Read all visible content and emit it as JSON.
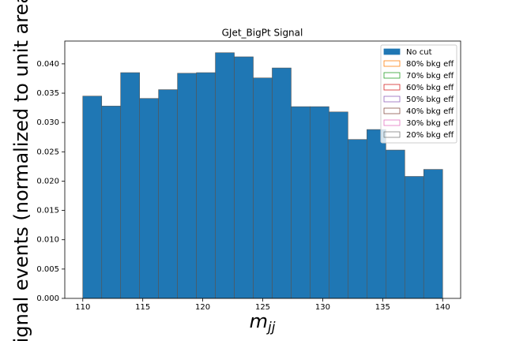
{
  "chart_data": {
    "type": "histogram",
    "title": "GJet_BigPt Signal",
    "xlabel": {
      "text": "m",
      "subscript": "jj"
    },
    "ylabel": "Signal events (normalized to unit area)",
    "bins": [
      110,
      111.578947,
      113.157895,
      114.736842,
      116.315789,
      117.894737,
      119.473684,
      121.052632,
      122.631579,
      124.210526,
      125.789474,
      127.368421,
      128.947368,
      130.526316,
      132.105263,
      133.684211,
      135.263158,
      136.842105,
      138.421053,
      140
    ],
    "series": [
      {
        "name": "No cut",
        "color": "#1f77b4",
        "edgecolor": "#555555",
        "values": [
          0.0345,
          0.0328,
          0.0385,
          0.0341,
          0.0356,
          0.0384,
          0.0385,
          0.0419,
          0.0412,
          0.0376,
          0.0393,
          0.0327,
          0.0327,
          0.0318,
          0.0271,
          0.0288,
          0.0253,
          0.0208,
          0.022
        ]
      },
      {
        "name": "80% bkg eff",
        "color": "#ff7f0e"
      },
      {
        "name": "70% bkg eff",
        "color": "#2ca02c"
      },
      {
        "name": "60% bkg eff",
        "color": "#d62728"
      },
      {
        "name": "50% bkg eff",
        "color": "#9467bd"
      },
      {
        "name": "40% bkg eff",
        "color": "#8c564b"
      },
      {
        "name": "30% bkg eff",
        "color": "#e377c2"
      },
      {
        "name": "20% bkg eff",
        "color": "#7f7f7f"
      }
    ],
    "xlim": [
      108.5,
      141.5
    ],
    "ylim": [
      0,
      0.04389
    ],
    "xticks": [
      110,
      115,
      120,
      125,
      130,
      135,
      140
    ],
    "yticks": [
      {
        "value": 0,
        "label": "0.000"
      },
      {
        "value": 0.005,
        "label": "0.005"
      },
      {
        "value": 0.01,
        "label": "0.010"
      },
      {
        "value": 0.015,
        "label": "0.015"
      },
      {
        "value": 0.02,
        "label": "0.020"
      },
      {
        "value": 0.025,
        "label": "0.025"
      },
      {
        "value": 0.03,
        "label": "0.030"
      },
      {
        "value": 0.035,
        "label": "0.035"
      },
      {
        "value": 0.04,
        "label": "0.040"
      }
    ],
    "legend": "upper right"
  }
}
